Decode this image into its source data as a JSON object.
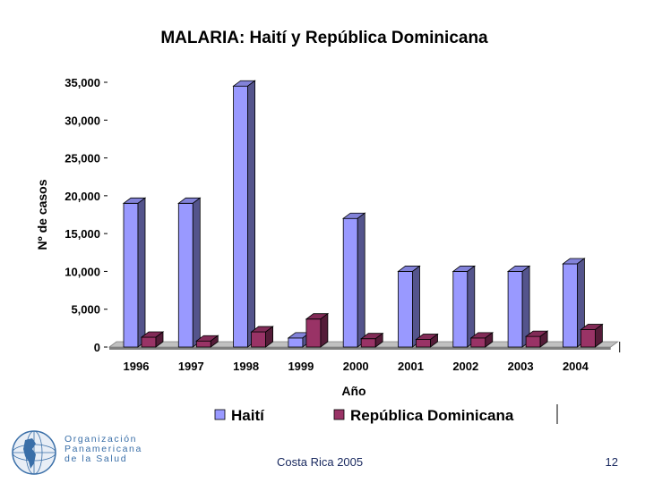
{
  "chart_data": {
    "type": "bar",
    "title": "MALARIA: Haití y República Dominicana",
    "xlabel": "Año",
    "ylabel": "Nº de casos",
    "categories": [
      "1996",
      "1997",
      "1998",
      "1999",
      "2000",
      "2001",
      "2002",
      "2003",
      "2004"
    ],
    "series": [
      {
        "name": "Haití",
        "color": "#9999ff",
        "values": [
          19000,
          19000,
          34500,
          1200,
          17000,
          10000,
          10000,
          10000,
          11000
        ]
      },
      {
        "name": "República Dominicana",
        "color": "#993366",
        "values": [
          1300,
          800,
          2000,
          3700,
          1100,
          1000,
          1200,
          1400,
          2300
        ]
      }
    ],
    "ylim": [
      0,
      35000
    ],
    "yticks": [
      "0",
      "5,000",
      "10,000",
      "15,000",
      "20,000",
      "25,000",
      "30,000",
      "35,000"
    ],
    "ytick_values": [
      0,
      5000,
      10000,
      15000,
      20000,
      25000,
      30000,
      35000
    ],
    "grid": false,
    "legend": "bottom"
  },
  "logo": {
    "line1": "Organización",
    "line2": "Panamericana",
    "line3": "de la Salud"
  },
  "footer": {
    "text": "Costa Rica 2005",
    "page_number": "12"
  }
}
